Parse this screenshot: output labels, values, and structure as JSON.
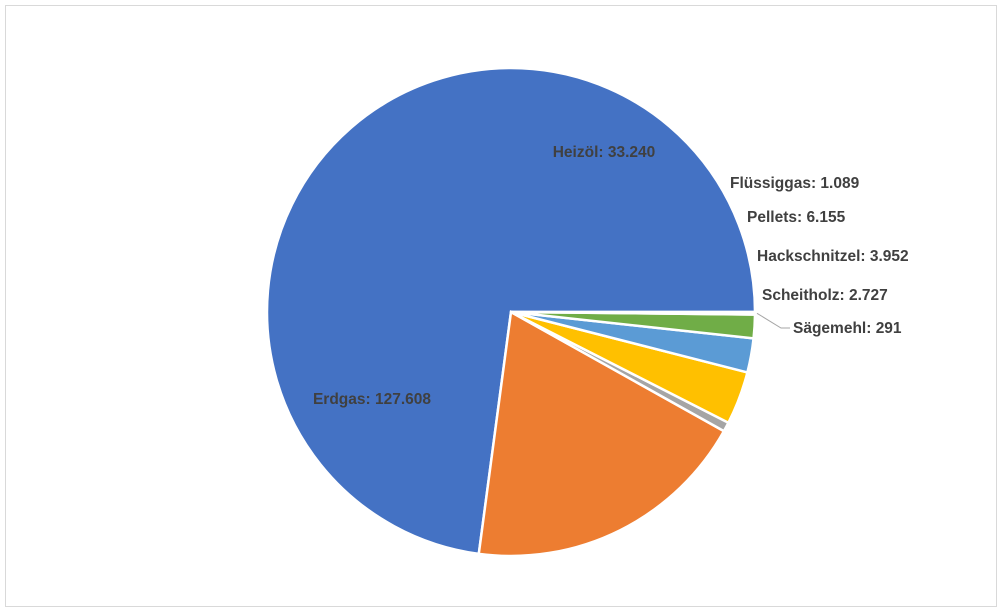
{
  "chart_data": {
    "type": "pie",
    "title": "",
    "slices": [
      {
        "label": "Erdgas",
        "value": 127608,
        "display": "Erdgas:  127.608",
        "color": "#4472c4"
      },
      {
        "label": "Heizöl",
        "value": 33240,
        "display": "Heizöl:  33.240",
        "color": "#ed7d31"
      },
      {
        "label": "Flüssiggas",
        "value": 1089,
        "display": "Flüssiggas:  1.089",
        "color": "#a5a5a5"
      },
      {
        "label": "Pellets",
        "value": 6155,
        "display": "Pellets:  6.155",
        "color": "#ffc000"
      },
      {
        "label": "Hackschnitzel",
        "value": 3952,
        "display": "Hackschnitzel:  3.952",
        "color": "#5b9bd5"
      },
      {
        "label": "Scheitholz",
        "value": 2727,
        "display": "Scheitholz:  2.727",
        "color": "#70ad47"
      },
      {
        "label": "Sägemehl",
        "value": 291,
        "display": "Sägemehl:  291",
        "color": "#264478"
      }
    ],
    "start_direction": "3 o'clock",
    "direction": "counterclockwise",
    "legend": "none"
  }
}
